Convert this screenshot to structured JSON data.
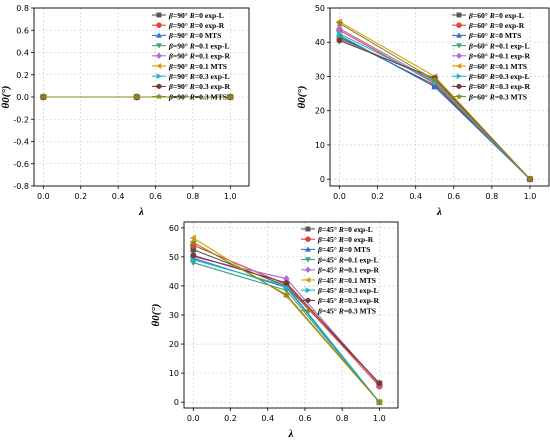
{
  "chart_data": [
    {
      "type": "line",
      "xlabel": "λ",
      "ylabel": "θ0(°)",
      "x": [
        0.0,
        0.5,
        1.0
      ],
      "xlim": [
        -0.05,
        1.1
      ],
      "ylim": [
        -0.8,
        0.8
      ],
      "xticks": [
        "0.0",
        "0.2",
        "0.4",
        "0.6",
        "0.8",
        "1.0"
      ],
      "yticks": [
        "-0.8",
        "-0.6",
        "-0.4",
        "-0.2",
        "0.0",
        "0.2",
        "0.4",
        "0.6",
        "0.8"
      ],
      "grid": true,
      "legend_position": "top-right",
      "series": [
        {
          "name": "β=90° R=0 exp-L",
          "beta": "90",
          "R": "0",
          "suffix": "exp-L",
          "color": "#555555",
          "marker": "square",
          "values": [
            0,
            0,
            0
          ]
        },
        {
          "name": "β=90° R=0 exp-R",
          "beta": "90",
          "R": "0",
          "suffix": "exp-R",
          "color": "#e8413a",
          "marker": "circle",
          "values": [
            0,
            0,
            0
          ]
        },
        {
          "name": "β=90° R=0 MTS",
          "beta": "90",
          "R": "0",
          "suffix": "MTS",
          "color": "#2f6fd6",
          "marker": "triangle-up",
          "values": [
            0,
            0,
            0
          ]
        },
        {
          "name": "β=90° R=0.1 exp-L",
          "beta": "90",
          "R": "0.1",
          "suffix": "exp-L",
          "color": "#3aa382",
          "marker": "triangle-down",
          "values": [
            0,
            0,
            0
          ]
        },
        {
          "name": "β=90° R=0.1 exp-R",
          "beta": "90",
          "R": "0.1",
          "suffix": "exp-R",
          "color": "#b16ad6",
          "marker": "diamond",
          "values": [
            0,
            0,
            0
          ]
        },
        {
          "name": "β=90° R=0.1 MTS",
          "beta": "90",
          "R": "0.1",
          "suffix": "MTS",
          "color": "#d89c12",
          "marker": "triangle-left",
          "values": [
            0,
            0,
            0
          ]
        },
        {
          "name": "β=90° R=0.3 exp-L",
          "beta": "90",
          "R": "0.3",
          "suffix": "exp-L",
          "color": "#1fb8c9",
          "marker": "triangle-right",
          "values": [
            0,
            0,
            0
          ]
        },
        {
          "name": "β=90° R=0.3 exp-R",
          "beta": "90",
          "R": "0.3",
          "suffix": "exp-R",
          "color": "#7a3a34",
          "marker": "hexagon",
          "values": [
            0,
            0,
            0
          ]
        },
        {
          "name": "β=90° R=0.3 MTS",
          "beta": "90",
          "R": "0.3",
          "suffix": "MTS",
          "color": "#8a8a1c",
          "marker": "star",
          "values": [
            0,
            0,
            0
          ]
        }
      ]
    },
    {
      "type": "line",
      "xlabel": "λ",
      "ylabel": "θ0(°)",
      "x": [
        0.0,
        0.5,
        1.0
      ],
      "xlim": [
        -0.05,
        1.1
      ],
      "ylim": [
        -2,
        50
      ],
      "xticks": [
        "0.0",
        "0.2",
        "0.4",
        "0.6",
        "0.8",
        "1.0"
      ],
      "yticks": [
        "0",
        "10",
        "20",
        "30",
        "40",
        "50"
      ],
      "grid": true,
      "legend_position": "top-right",
      "series": [
        {
          "name": "β=60° R=0 exp-L",
          "beta": "60",
          "R": "0",
          "suffix": "exp-L",
          "color": "#555555",
          "marker": "square",
          "values": [
            41.5,
            27.5,
            0
          ]
        },
        {
          "name": "β=60° R=0 exp-R",
          "beta": "60",
          "R": "0",
          "suffix": "exp-R",
          "color": "#e8413a",
          "marker": "circle",
          "values": [
            43.5,
            28.0,
            0
          ]
        },
        {
          "name": "β=60° R=0 MTS",
          "beta": "60",
          "R": "0",
          "suffix": "MTS",
          "color": "#2f6fd6",
          "marker": "triangle-up",
          "values": [
            42.0,
            27.0,
            0
          ]
        },
        {
          "name": "β=60° R=0.1 exp-L",
          "beta": "60",
          "R": "0.1",
          "suffix": "exp-L",
          "color": "#3aa382",
          "marker": "triangle-down",
          "values": [
            41.0,
            29.0,
            0
          ]
        },
        {
          "name": "β=60° R=0.1 exp-R",
          "beta": "60",
          "R": "0.1",
          "suffix": "exp-R",
          "color": "#b16ad6",
          "marker": "diamond",
          "values": [
            44.0,
            28.5,
            0
          ]
        },
        {
          "name": "β=60° R=0.1 MTS",
          "beta": "60",
          "R": "0.1",
          "suffix": "MTS",
          "color": "#d89c12",
          "marker": "triangle-left",
          "values": [
            46.0,
            30.0,
            0
          ]
        },
        {
          "name": "β=60° R=0.3 exp-L",
          "beta": "60",
          "R": "0.3",
          "suffix": "exp-L",
          "color": "#1fb8c9",
          "marker": "triangle-right",
          "values": [
            42.5,
            28.5,
            0
          ]
        },
        {
          "name": "β=60° R=0.3 exp-R",
          "beta": "60",
          "R": "0.3",
          "suffix": "exp-R",
          "color": "#7a3a34",
          "marker": "hexagon",
          "values": [
            40.5,
            29.5,
            0
          ]
        },
        {
          "name": "β=60° R=0.3 MTS",
          "beta": "60",
          "R": "0.3",
          "suffix": "MTS",
          "color": "#8a8a1c",
          "marker": "star",
          "values": [
            45.5,
            29.0,
            0
          ]
        }
      ]
    },
    {
      "type": "line",
      "xlabel": "λ",
      "ylabel": "θ0(°)",
      "x": [
        0.0,
        0.5,
        1.0
      ],
      "xlim": [
        -0.05,
        1.1
      ],
      "ylim": [
        -2,
        62
      ],
      "xticks": [
        "0.0",
        "0.2",
        "0.4",
        "0.6",
        "0.8",
        "1.0"
      ],
      "yticks": [
        "0",
        "10",
        "20",
        "30",
        "40",
        "50",
        "60"
      ],
      "grid": true,
      "legend_position": "top-right",
      "series": [
        {
          "name": "β=45° R=0 exp-L",
          "beta": "45",
          "R": "0",
          "suffix": "exp-L",
          "color": "#555555",
          "marker": "square",
          "values": [
            52.5,
            40.0,
            6.5
          ]
        },
        {
          "name": "β=45° R=0 exp-R",
          "beta": "45",
          "R": "0",
          "suffix": "exp-R",
          "color": "#e8413a",
          "marker": "circle",
          "values": [
            54.0,
            40.5,
            5.5
          ]
        },
        {
          "name": "β=45° R=0 MTS",
          "beta": "45",
          "R": "0",
          "suffix": "MTS",
          "color": "#2f6fd6",
          "marker": "triangle-up",
          "values": [
            49.5,
            39.5,
            0
          ]
        },
        {
          "name": "β=45° R=0.1 exp-L",
          "beta": "45",
          "R": "0.1",
          "suffix": "exp-L",
          "color": "#3aa382",
          "marker": "triangle-down",
          "values": [
            48.0,
            38.5,
            0
          ]
        },
        {
          "name": "β=45° R=0.1 exp-R",
          "beta": "45",
          "R": "0.1",
          "suffix": "exp-R",
          "color": "#b16ad6",
          "marker": "diamond",
          "values": [
            50.0,
            42.5,
            6.0
          ]
        },
        {
          "name": "β=45° R=0.1 MTS",
          "beta": "45",
          "R": "0.1",
          "suffix": "MTS",
          "color": "#d89c12",
          "marker": "triangle-left",
          "values": [
            56.5,
            36.5,
            0
          ]
        },
        {
          "name": "β=45° R=0.3 exp-L",
          "beta": "45",
          "R": "0.3",
          "suffix": "exp-L",
          "color": "#1fb8c9",
          "marker": "triangle-right",
          "values": [
            49.0,
            40.0,
            0
          ]
        },
        {
          "name": "β=45° R=0.3 exp-R",
          "beta": "45",
          "R": "0.3",
          "suffix": "exp-R",
          "color": "#7a3a34",
          "marker": "hexagon",
          "values": [
            50.5,
            41.0,
            6.5
          ]
        },
        {
          "name": "β=45° R=0.3 MTS",
          "beta": "45",
          "R": "0.3",
          "suffix": "MTS",
          "color": "#8a8a1c",
          "marker": "star",
          "values": [
            55.0,
            37.0,
            0
          ]
        }
      ]
    }
  ]
}
